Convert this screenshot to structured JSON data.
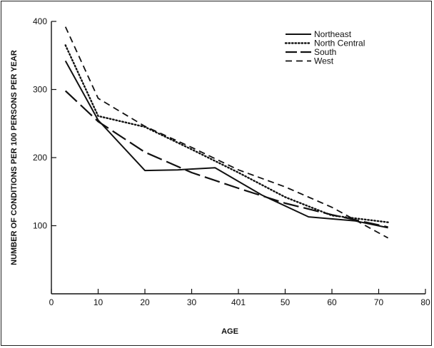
{
  "chart_data": {
    "type": "line",
    "title": "",
    "xlabel": "AGE",
    "ylabel": "NUMBER OF CONDITIONS PER 100 PERSONS PER YEAR",
    "xlim": [
      0,
      80
    ],
    "ylim": [
      0,
      400
    ],
    "x_ticks": [
      "0",
      "10",
      "20",
      "30",
      "401",
      "50",
      "60",
      "70",
      "80"
    ],
    "x_tick_values": [
      0,
      10,
      20,
      30,
      40,
      50,
      60,
      70,
      80
    ],
    "y_ticks": [
      "100",
      "200",
      "300",
      "400"
    ],
    "y_tick_values": [
      100,
      200,
      300,
      400
    ],
    "grid": false,
    "legend_position": "top-right",
    "series": [
      {
        "name": "Northeast",
        "style": "solid",
        "x": [
          3,
          10,
          20,
          27,
          35,
          45,
          55,
          65,
          72
        ],
        "y": [
          342,
          255,
          181,
          182,
          185,
          145,
          113,
          107,
          97
        ]
      },
      {
        "name": "North Central",
        "style": "dotted",
        "x": [
          3,
          10,
          20,
          30,
          40,
          50,
          60,
          72
        ],
        "y": [
          365,
          261,
          245,
          212,
          178,
          142,
          115,
          105
        ]
      },
      {
        "name": "South",
        "style": "longdash",
        "x": [
          3,
          10,
          20,
          30,
          40,
          50,
          60,
          72
        ],
        "y": [
          298,
          253,
          208,
          178,
          155,
          133,
          116,
          98
        ]
      },
      {
        "name": "West",
        "style": "dashed",
        "x": [
          3,
          10,
          20,
          30,
          40,
          50,
          60,
          72
        ],
        "y": [
          392,
          287,
          246,
          215,
          182,
          157,
          127,
          82
        ]
      }
    ]
  }
}
